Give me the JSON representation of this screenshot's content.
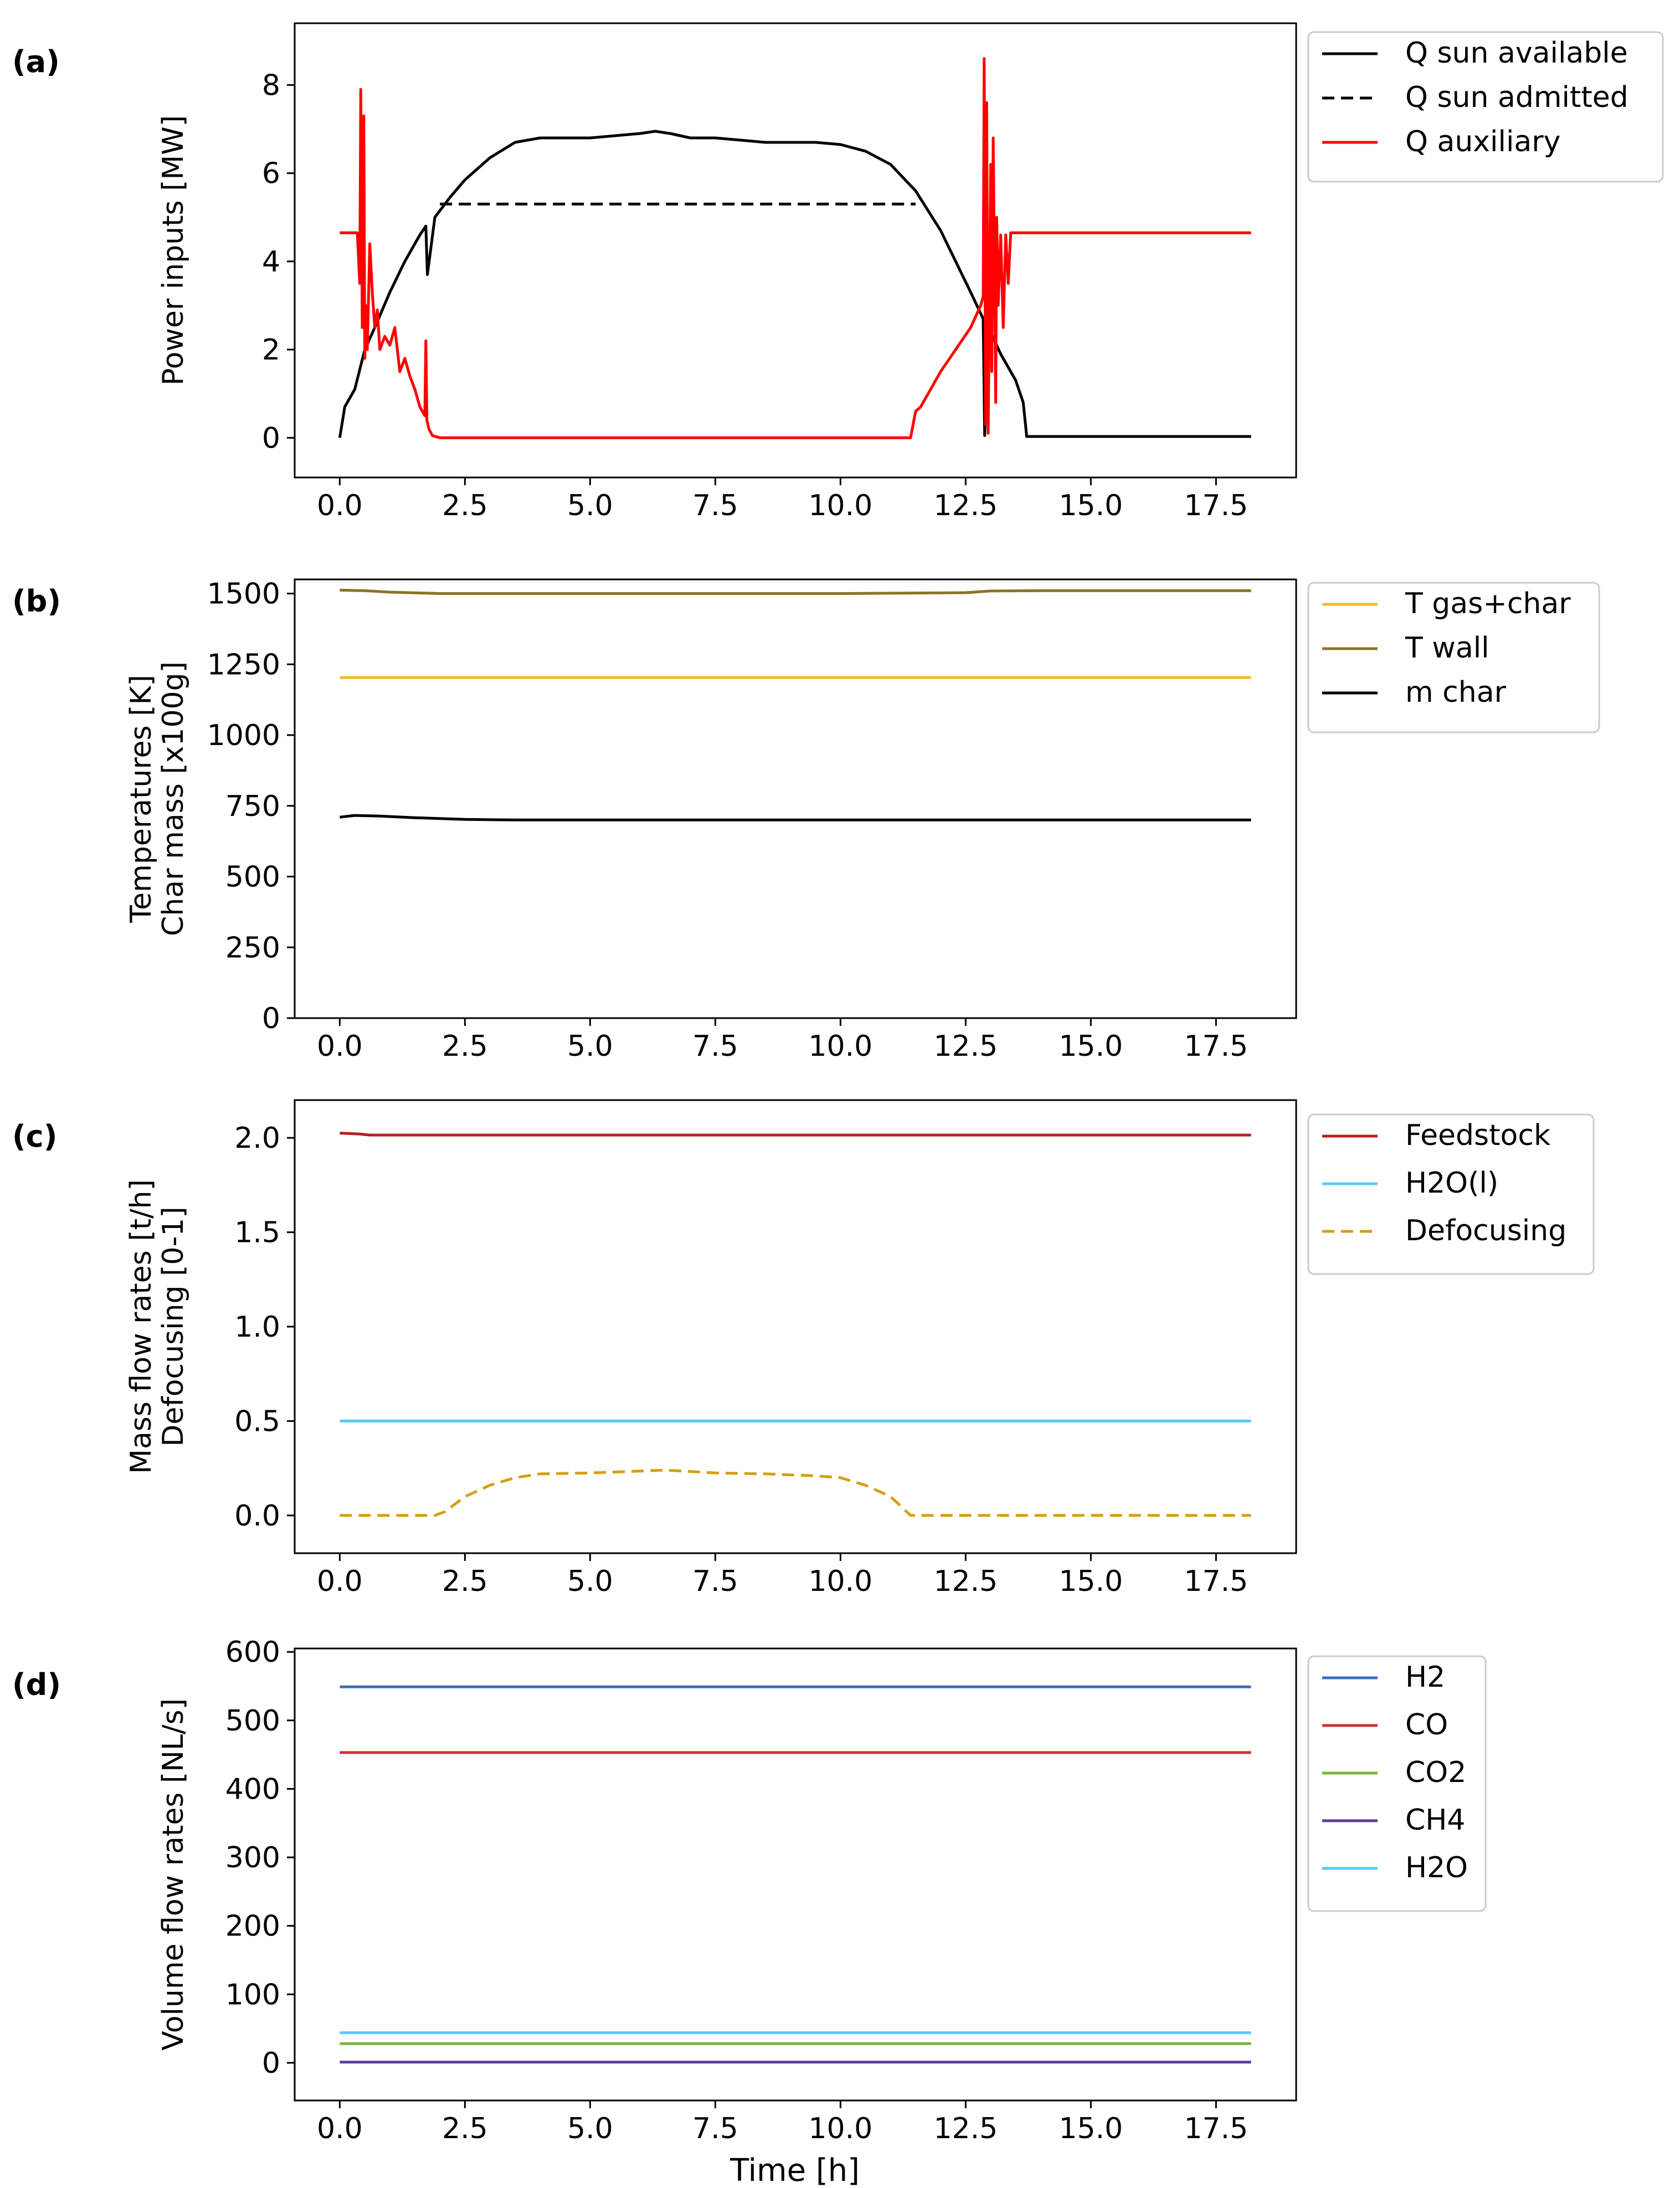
{
  "figure": {
    "xlabel": "Time [h]",
    "x_ticks": [
      "0.0",
      "2.5",
      "5.0",
      "7.5",
      "10.0",
      "12.5",
      "15.0",
      "17.5"
    ]
  },
  "chart_data": [
    {
      "type": "line",
      "panel_label": "(a)",
      "ylabel_lines": [
        "Power inputs [MW]"
      ],
      "xlim": [
        -0.9,
        19.1
      ],
      "ylim": [
        -0.9,
        9.4
      ],
      "x_ticks": [
        0,
        2.5,
        5,
        7.5,
        10,
        12.5,
        15,
        17.5
      ],
      "y_ticks": [
        0,
        2,
        4,
        6,
        8
      ],
      "y_tick_labels": [
        "0",
        "2",
        "4",
        "6",
        "8"
      ],
      "legend_position": "outside-right-top",
      "series": [
        {
          "name": "Q sun available",
          "color": "#000000",
          "dash": "solid",
          "x": [
            0,
            0.1,
            0.3,
            0.5,
            0.7,
            1.0,
            1.3,
            1.6,
            1.72,
            1.75,
            1.9,
            2.2,
            2.5,
            3.0,
            3.5,
            4.0,
            4.5,
            5.0,
            5.5,
            6.0,
            6.3,
            6.6,
            7.0,
            7.5,
            8.0,
            8.5,
            9.0,
            9.5,
            10.0,
            10.5,
            11.0,
            11.5,
            12.0,
            12.3,
            12.6,
            12.85,
            12.88,
            12.95,
            13.2,
            13.5,
            13.65,
            13.72,
            14.0,
            15.0,
            16.0,
            17.0,
            18.2
          ],
          "y": [
            0,
            0.7,
            1.1,
            2.0,
            2.5,
            3.3,
            4.0,
            4.6,
            4.8,
            3.7,
            5.0,
            5.45,
            5.85,
            6.35,
            6.7,
            6.8,
            6.8,
            6.8,
            6.85,
            6.9,
            6.95,
            6.9,
            6.8,
            6.8,
            6.75,
            6.7,
            6.7,
            6.7,
            6.65,
            6.5,
            6.2,
            5.6,
            4.7,
            4.0,
            3.3,
            2.7,
            0.05,
            2.5,
            1.9,
            1.3,
            0.8,
            0.03,
            0.03,
            0.03,
            0.03,
            0.03,
            0.03
          ]
        },
        {
          "name": "Q sun admitted",
          "color": "#000000",
          "dash": "dashed",
          "x": [
            2.0,
            2.5,
            5.0,
            7.5,
            10.0,
            11.5
          ],
          "y": [
            5.3,
            5.3,
            5.3,
            5.3,
            5.3,
            5.3
          ]
        },
        {
          "name": "Q auxiliary",
          "color": "#ff0000",
          "dash": "solid",
          "x": [
            0,
            0.35,
            0.4,
            0.42,
            0.45,
            0.48,
            0.5,
            0.52,
            0.55,
            0.6,
            0.65,
            0.7,
            0.75,
            0.8,
            0.9,
            1.0,
            1.1,
            1.2,
            1.3,
            1.4,
            1.5,
            1.6,
            1.7,
            1.72,
            1.74,
            1.78,
            1.85,
            2.0,
            2.5,
            5.0,
            7.5,
            10.0,
            11.4,
            11.5,
            11.6,
            11.8,
            12.0,
            12.3,
            12.6,
            12.8,
            12.85,
            12.87,
            12.9,
            12.92,
            12.95,
            13.0,
            13.02,
            13.05,
            13.1,
            13.12,
            13.15,
            13.2,
            13.25,
            13.3,
            13.35,
            13.4,
            13.5,
            14.0,
            15.0,
            16.0,
            17.0,
            18.2
          ],
          "y": [
            4.65,
            4.65,
            3.5,
            7.9,
            2.5,
            7.3,
            1.8,
            3.0,
            2.0,
            4.4,
            3.3,
            2.5,
            2.9,
            2.0,
            2.3,
            2.1,
            2.5,
            1.5,
            1.8,
            1.4,
            1.1,
            0.7,
            0.5,
            2.2,
            0.4,
            0.2,
            0.05,
            0,
            0,
            0,
            0,
            0,
            0,
            0.6,
            0.7,
            1.1,
            1.5,
            2.0,
            2.5,
            3.0,
            3.2,
            8.6,
            0.3,
            7.6,
            0.1,
            6.2,
            1.5,
            6.8,
            0.8,
            5.0,
            3.0,
            4.6,
            2.5,
            4.6,
            3.5,
            4.65,
            4.65,
            4.65,
            4.65,
            4.65,
            4.65,
            4.65
          ]
        }
      ]
    },
    {
      "type": "line",
      "panel_label": "(b)",
      "ylabel_lines": [
        "Temperatures [K]",
        "Char mass [x100g]"
      ],
      "xlim": [
        -0.9,
        19.1
      ],
      "ylim": [
        0,
        1550
      ],
      "x_ticks": [
        0,
        2.5,
        5,
        7.5,
        10,
        12.5,
        15,
        17.5
      ],
      "y_ticks": [
        0,
        250,
        500,
        750,
        1000,
        1250,
        1500
      ],
      "y_tick_labels": [
        "0",
        "250",
        "500",
        "750",
        "1000",
        "1250",
        "1500"
      ],
      "legend_position": "outside-right-top",
      "series": [
        {
          "name": "T gas+char",
          "color": "#f5b82e",
          "dash": "solid",
          "x": [
            0,
            18.2
          ],
          "y": [
            1203,
            1203
          ]
        },
        {
          "name": "T wall",
          "color": "#8b7428",
          "dash": "solid",
          "x": [
            0,
            0.5,
            1.0,
            2.0,
            5.0,
            10.0,
            12.5,
            13.0,
            14.0,
            18.2
          ],
          "y": [
            1512,
            1510,
            1505,
            1500,
            1500,
            1500,
            1503,
            1509,
            1510,
            1510
          ]
        },
        {
          "name": "m char",
          "color": "#000000",
          "dash": "solid",
          "x": [
            0,
            0.3,
            0.8,
            1.5,
            2.5,
            3.5,
            5.0,
            10.0,
            18.2
          ],
          "y": [
            710,
            716,
            714,
            708,
            702,
            700,
            700,
            700,
            700
          ]
        }
      ]
    },
    {
      "type": "line",
      "panel_label": "(c)",
      "ylabel_lines": [
        "Mass flow rates [t/h]",
        "Defocusing [0-1]"
      ],
      "xlim": [
        -0.9,
        19.1
      ],
      "ylim": [
        -0.2,
        2.2
      ],
      "x_ticks": [
        0,
        2.5,
        5,
        7.5,
        10,
        12.5,
        15,
        17.5
      ],
      "y_ticks": [
        0,
        0.5,
        1.0,
        1.5,
        2.0
      ],
      "y_tick_labels": [
        "0.0",
        "0.5",
        "1.0",
        "1.5",
        "2.0"
      ],
      "legend_position": "outside-right-top",
      "series": [
        {
          "name": "Feedstock",
          "color": "#b22222",
          "dash": "solid",
          "x": [
            0,
            0.4,
            0.6,
            2.0,
            18.2
          ],
          "y": [
            2.025,
            2.02,
            2.015,
            2.015,
            2.015
          ]
        },
        {
          "name": "H2O(l)",
          "color": "#5bc8fa",
          "dash": "solid",
          "x": [
            0,
            18.2
          ],
          "y": [
            0.5,
            0.5
          ]
        },
        {
          "name": "Defocusing",
          "color": "#d4a012",
          "dash": "dashed",
          "x": [
            0,
            1.9,
            2.1,
            2.5,
            3.0,
            3.5,
            4.0,
            5.0,
            6.0,
            6.5,
            7.5,
            8.5,
            9.5,
            10.0,
            10.5,
            11.0,
            11.4,
            12.0,
            18.2
          ],
          "y": [
            0,
            0,
            0.02,
            0.1,
            0.16,
            0.2,
            0.22,
            0.225,
            0.235,
            0.24,
            0.225,
            0.22,
            0.21,
            0.2,
            0.16,
            0.1,
            0,
            0,
            0
          ]
        }
      ]
    },
    {
      "type": "line",
      "panel_label": "(d)",
      "ylabel_lines": [
        "Volume flow rates [NL/s]"
      ],
      "xlim": [
        -0.9,
        19.1
      ],
      "ylim": [
        -55,
        605
      ],
      "x_ticks": [
        0,
        2.5,
        5,
        7.5,
        10,
        12.5,
        15,
        17.5
      ],
      "y_ticks": [
        0,
        100,
        200,
        300,
        400,
        500,
        600
      ],
      "y_tick_labels": [
        "0",
        "100",
        "200",
        "300",
        "400",
        "500",
        "600"
      ],
      "legend_position": "outside-right-top",
      "series": [
        {
          "name": "H2",
          "color": "#3a6fbf",
          "dash": "solid",
          "x": [
            0,
            18.2
          ],
          "y": [
            549,
            549
          ]
        },
        {
          "name": "CO",
          "color": "#cc3333",
          "dash": "solid",
          "x": [
            0,
            18.2
          ],
          "y": [
            453,
            453
          ]
        },
        {
          "name": "CO2",
          "color": "#7fb33c",
          "dash": "solid",
          "x": [
            0,
            18.2
          ],
          "y": [
            28,
            28
          ]
        },
        {
          "name": "CH4",
          "color": "#5b3e99",
          "dash": "solid",
          "x": [
            0,
            18.2
          ],
          "y": [
            1,
            1
          ]
        },
        {
          "name": "H2O",
          "color": "#5bc8fa",
          "dash": "solid",
          "x": [
            0,
            18.2
          ],
          "y": [
            44,
            44
          ]
        }
      ]
    }
  ]
}
